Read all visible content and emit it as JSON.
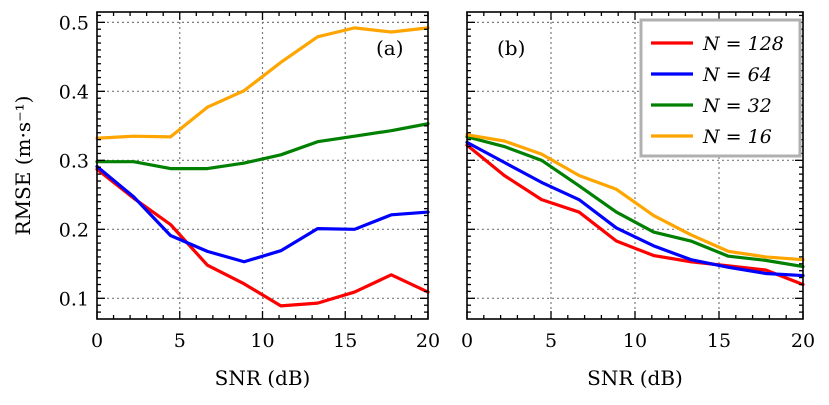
{
  "chart_data": [
    {
      "type": "line",
      "panel": "(a)",
      "xlabel": "SNR (dB)",
      "ylabel": "RMSE (m·s⁻¹)",
      "xlim": [
        0,
        20
      ],
      "ylim": [
        0.07,
        0.515
      ],
      "xticks": [
        0,
        5,
        10,
        15,
        20
      ],
      "yticks": [
        0.1,
        0.2,
        0.3,
        0.4,
        0.5
      ],
      "ytick_labels": [
        "0.1",
        "0.2",
        "0.3",
        "0.4",
        "0.5"
      ],
      "grid": true,
      "x": [
        0,
        2.22,
        4.44,
        6.67,
        8.89,
        11.11,
        13.33,
        15.56,
        17.78,
        20
      ],
      "series": [
        {
          "name": "N = 128",
          "color": "#ff0000",
          "values": [
            0.287,
            0.245,
            0.207,
            0.148,
            0.121,
            0.089,
            0.093,
            0.109,
            0.134,
            0.109
          ]
        },
        {
          "name": "N = 64",
          "color": "#0000ff",
          "values": [
            0.291,
            0.247,
            0.191,
            0.168,
            0.153,
            0.169,
            0.201,
            0.2,
            0.221,
            0.225
          ]
        },
        {
          "name": "N = 32",
          "color": "#008000",
          "values": [
            0.298,
            0.298,
            0.288,
            0.288,
            0.296,
            0.308,
            0.327,
            0.335,
            0.343,
            0.353
          ]
        },
        {
          "name": "N = 16",
          "color": "#ffa500",
          "values": [
            0.332,
            0.335,
            0.334,
            0.377,
            0.401,
            0.442,
            0.479,
            0.492,
            0.486,
            0.492
          ]
        }
      ]
    },
    {
      "type": "line",
      "panel": "(b)",
      "xlabel": "SNR (dB)",
      "ylabel": "",
      "xlim": [
        0,
        20
      ],
      "ylim": [
        0.07,
        0.515
      ],
      "xticks": [
        0,
        5,
        10,
        15,
        20
      ],
      "yticks": [
        0.1,
        0.2,
        0.3,
        0.4,
        0.5
      ],
      "grid": true,
      "legend": "top-right",
      "x": [
        0,
        2.22,
        4.44,
        6.67,
        8.89,
        11.11,
        13.33,
        15.56,
        17.78,
        20
      ],
      "series": [
        {
          "name": "N = 128",
          "color": "#ff0000",
          "values": [
            0.322,
            0.278,
            0.243,
            0.225,
            0.183,
            0.162,
            0.153,
            0.147,
            0.141,
            0.12
          ]
        },
        {
          "name": "N = 64",
          "color": "#0000ff",
          "values": [
            0.326,
            0.297,
            0.268,
            0.243,
            0.202,
            0.176,
            0.156,
            0.145,
            0.136,
            0.133
          ]
        },
        {
          "name": "N = 32",
          "color": "#008000",
          "values": [
            0.334,
            0.32,
            0.3,
            0.263,
            0.225,
            0.196,
            0.183,
            0.161,
            0.155,
            0.146
          ]
        },
        {
          "name": "N = 16",
          "color": "#ffa500",
          "values": [
            0.337,
            0.328,
            0.309,
            0.278,
            0.258,
            0.22,
            0.192,
            0.168,
            0.16,
            0.156
          ]
        }
      ]
    }
  ]
}
